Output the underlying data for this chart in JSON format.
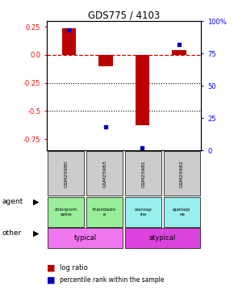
{
  "title": "GDS775 / 4103",
  "samples": [
    "GSM25980",
    "GSM25983",
    "GSM25981",
    "GSM25982"
  ],
  "log_ratios": [
    0.24,
    -0.1,
    -0.63,
    0.04
  ],
  "percentile_ranks": [
    93,
    18,
    2,
    82
  ],
  "ylim_left": [
    -0.85,
    0.3
  ],
  "ylim_right": [
    0,
    100
  ],
  "yticks_left": [
    0.25,
    0.0,
    -0.25,
    -0.5,
    -0.75
  ],
  "yticks_right_vals": [
    100,
    75,
    50,
    25,
    0
  ],
  "yticks_right_labels": [
    "100%",
    "75",
    "50",
    "25",
    "0"
  ],
  "bar_color": "#bb0000",
  "dot_color": "#0000bb",
  "agent_labels": [
    "chlorprom\nazine",
    "thioridazin\ne",
    "olanzap\nine",
    "quetiapi\nne"
  ],
  "agent_colors": [
    "#99ee99",
    "#99ee99",
    "#99eeee",
    "#99eeee"
  ],
  "other_labels": [
    "typical",
    "atypical"
  ],
  "other_colors": [
    "#ee77ee",
    "#dd44dd"
  ],
  "legend_bar_color": "#bb0000",
  "legend_dot_color": "#0000bb",
  "background_color": "#ffffff"
}
